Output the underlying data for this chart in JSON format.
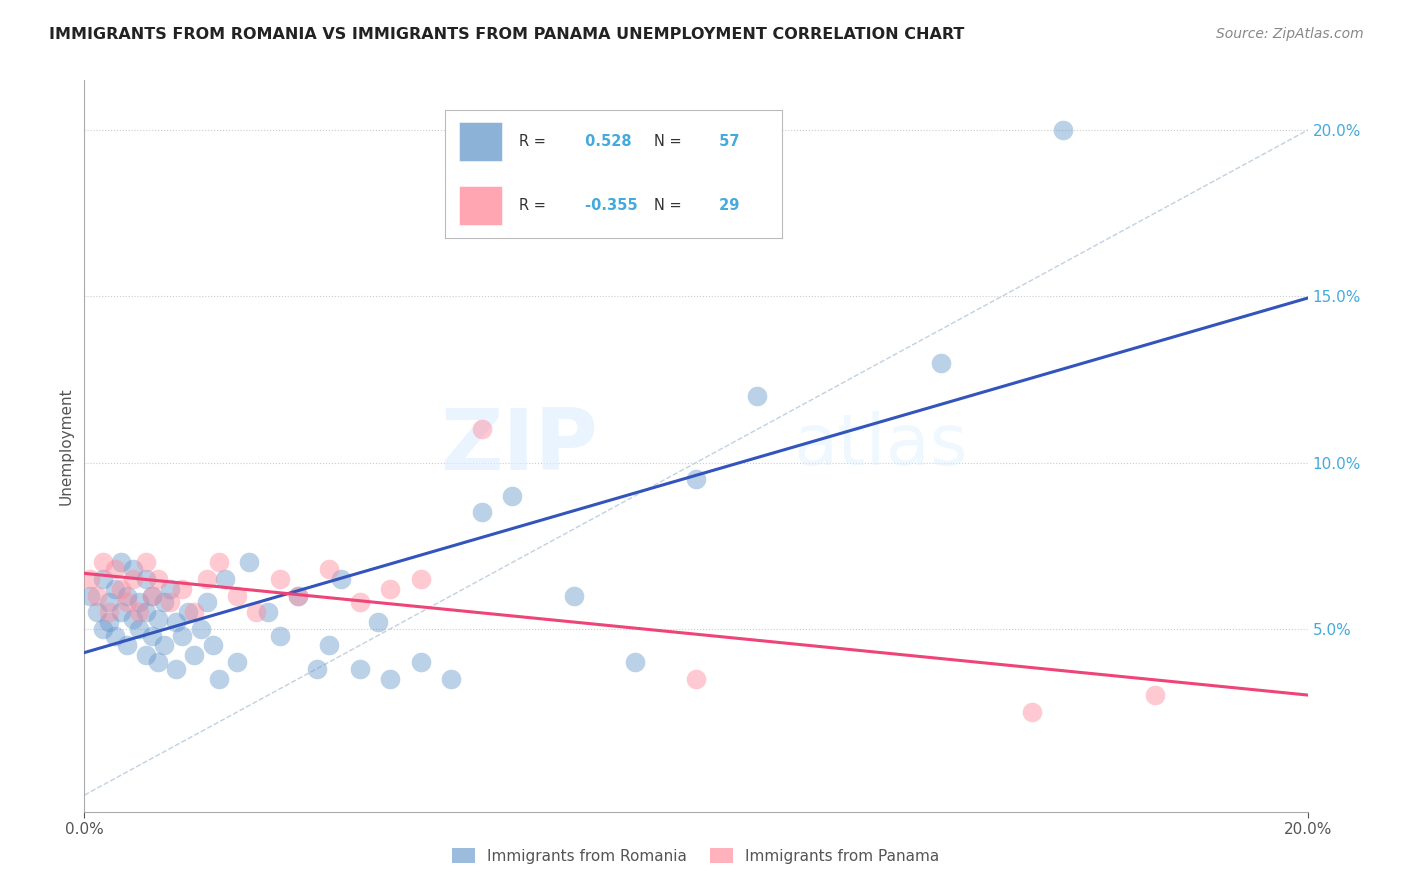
{
  "title": "IMMIGRANTS FROM ROMANIA VS IMMIGRANTS FROM PANAMA UNEMPLOYMENT CORRELATION CHART",
  "source": "Source: ZipAtlas.com",
  "ylabel": "Unemployment",
  "right_yticks": [
    "20.0%",
    "15.0%",
    "10.0%",
    "5.0%"
  ],
  "right_ytick_vals": [
    0.2,
    0.15,
    0.1,
    0.05
  ],
  "xlim": [
    0.0,
    0.2
  ],
  "ylim": [
    -0.005,
    0.215
  ],
  "romania_R": 0.528,
  "romania_N": 57,
  "panama_R": -0.355,
  "panama_N": 29,
  "romania_color": "#6699CC",
  "panama_color": "#FF8899",
  "trendline_romania_color": "#3355BB",
  "trendline_panama_color": "#EE4477",
  "diagonal_color": "#BBCCDD",
  "watermark_zip": "ZIP",
  "watermark_atlas": "atlas",
  "legend_box_color": "#CCCCCC",
  "romania_x": [
    0.001,
    0.002,
    0.003,
    0.003,
    0.004,
    0.004,
    0.005,
    0.005,
    0.006,
    0.006,
    0.007,
    0.007,
    0.008,
    0.008,
    0.009,
    0.009,
    0.01,
    0.01,
    0.01,
    0.011,
    0.011,
    0.012,
    0.012,
    0.013,
    0.013,
    0.014,
    0.015,
    0.015,
    0.016,
    0.017,
    0.018,
    0.019,
    0.02,
    0.021,
    0.022,
    0.023,
    0.025,
    0.027,
    0.03,
    0.032,
    0.035,
    0.038,
    0.04,
    0.042,
    0.045,
    0.048,
    0.05,
    0.055,
    0.06,
    0.065,
    0.07,
    0.08,
    0.09,
    0.1,
    0.11,
    0.14,
    0.16
  ],
  "romania_y": [
    0.06,
    0.055,
    0.05,
    0.065,
    0.058,
    0.052,
    0.048,
    0.062,
    0.055,
    0.07,
    0.045,
    0.06,
    0.053,
    0.068,
    0.05,
    0.058,
    0.042,
    0.055,
    0.065,
    0.048,
    0.06,
    0.053,
    0.04,
    0.058,
    0.045,
    0.062,
    0.038,
    0.052,
    0.048,
    0.055,
    0.042,
    0.05,
    0.058,
    0.045,
    0.035,
    0.065,
    0.04,
    0.07,
    0.055,
    0.048,
    0.06,
    0.038,
    0.045,
    0.065,
    0.038,
    0.052,
    0.035,
    0.04,
    0.035,
    0.085,
    0.09,
    0.06,
    0.04,
    0.095,
    0.12,
    0.13,
    0.2
  ],
  "panama_x": [
    0.001,
    0.002,
    0.003,
    0.004,
    0.005,
    0.006,
    0.007,
    0.008,
    0.009,
    0.01,
    0.011,
    0.012,
    0.014,
    0.016,
    0.018,
    0.02,
    0.022,
    0.025,
    0.028,
    0.032,
    0.035,
    0.04,
    0.045,
    0.05,
    0.055,
    0.065,
    0.1,
    0.155,
    0.175
  ],
  "panama_y": [
    0.065,
    0.06,
    0.07,
    0.055,
    0.068,
    0.062,
    0.058,
    0.065,
    0.055,
    0.07,
    0.06,
    0.065,
    0.058,
    0.062,
    0.055,
    0.065,
    0.07,
    0.06,
    0.055,
    0.065,
    0.06,
    0.068,
    0.058,
    0.062,
    0.065,
    0.11,
    0.035,
    0.025,
    0.03
  ]
}
